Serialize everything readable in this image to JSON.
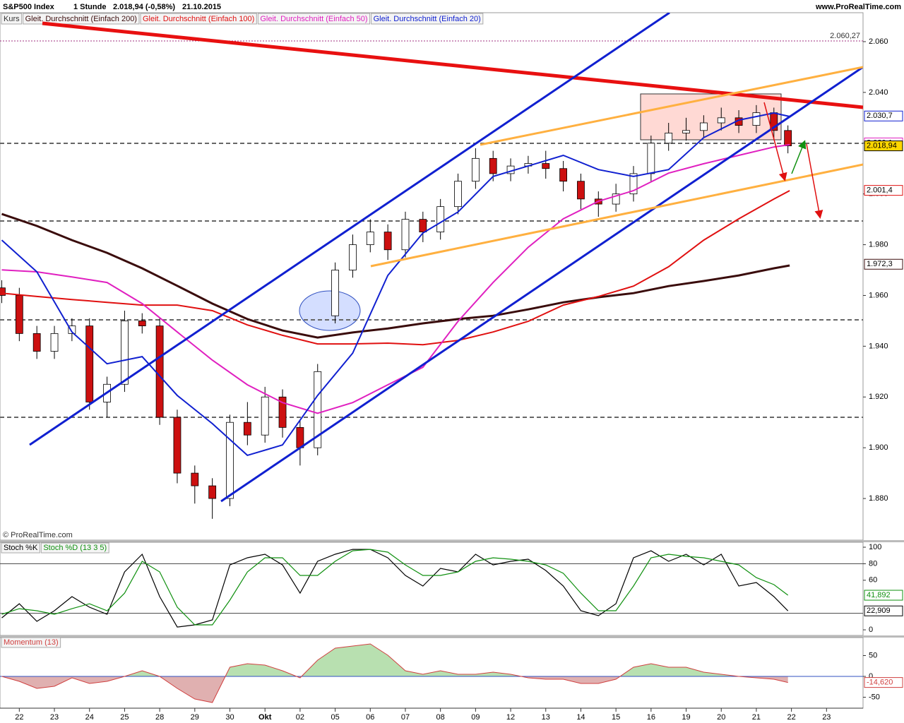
{
  "header": {
    "source": "www.ProRealTime.com"
  },
  "chart_data": [
    {
      "type": "candlestick",
      "title": "S&P500 Index",
      "timeframe": "1 Stunde",
      "quote": "2.018,94 (-0,58%)",
      "date": "21.10.2015",
      "copyright": "© ProRealTime.com",
      "name": "Kurs",
      "up_color": "#ffffff",
      "down_color": "#cc1010",
      "x": [
        -0.5,
        0,
        0.5,
        1,
        1.5,
        2,
        2.5,
        3,
        3.5,
        4,
        4.5,
        5,
        5.5,
        6,
        6.5,
        7,
        7.5,
        8,
        8.5,
        9,
        9.5,
        10,
        10.5,
        11,
        11.5,
        12,
        12.5,
        13,
        13.5,
        14,
        14.5,
        15,
        15.5,
        16,
        16.5,
        17,
        17.5,
        18,
        18.5,
        19,
        19.5,
        20,
        20.5,
        21,
        21.5,
        21.9
      ],
      "open": [
        1963,
        1960,
        1945,
        1938,
        1945,
        1948,
        1918,
        1925,
        1950,
        1948,
        1912,
        1890,
        1885,
        1880,
        1910,
        1905,
        1920,
        1908,
        1900,
        1952,
        1970,
        1980,
        1985,
        1978,
        1990,
        1985,
        1995,
        2005,
        2014,
        2008,
        2011,
        2012,
        2010,
        2005,
        1998,
        1996,
        2000,
        2008,
        2020,
        2024,
        2025,
        2028,
        2030,
        2027,
        2032,
        2025
      ],
      "high": [
        1966,
        1963,
        1948,
        1948,
        1951,
        1951,
        1928,
        1954,
        1953,
        1951,
        1915,
        1893,
        1888,
        1913,
        1918,
        1924,
        1923,
        1911,
        1933,
        1973,
        1984,
        1990,
        1988,
        1993,
        1993,
        1998,
        2008,
        2018,
        2017,
        2014,
        2015,
        2017,
        2013,
        2008,
        2001,
        2004,
        2011,
        2023,
        2028,
        2030,
        2031,
        2034,
        2033,
        2035,
        2034,
        2027
      ],
      "low": [
        1957,
        1942,
        1935,
        1935,
        1942,
        1915,
        1912,
        1922,
        1945,
        1909,
        1886,
        1878,
        1872,
        1877,
        1901,
        1902,
        1904,
        1893,
        1897,
        1949,
        1967,
        1977,
        1974,
        1975,
        1981,
        1982,
        1992,
        2002,
        2005,
        2005,
        2008,
        2006,
        2001,
        1994,
        1991,
        1993,
        1997,
        2005,
        2017,
        2021,
        2022,
        2025,
        2024,
        2024,
        2022,
        2016
      ],
      "close": [
        1960,
        1945,
        1938,
        1945,
        1948,
        1918,
        1925,
        1950,
        1948,
        1912,
        1890,
        1885,
        1880,
        1910,
        1905,
        1920,
        1908,
        1900,
        1930,
        1970,
        1980,
        1985,
        1978,
        1990,
        1985,
        1995,
        2005,
        2014,
        2008,
        2011,
        2012,
        2010,
        2005,
        1998,
        1996,
        2000,
        2008,
        2020,
        2024,
        2025,
        2028,
        2030,
        2027,
        2032,
        2025,
        2018.94
      ],
      "series": [
        {
          "name": "Gleit. Durchschnitt (Einfach 200)",
          "color": "#3a0c0c",
          "width": 3,
          "x": [
            -0.5,
            0.5,
            1.5,
            2.5,
            3.5,
            4.5,
            5.5,
            6.5,
            7.5,
            8.5,
            9.5,
            10.5,
            11.5,
            12.5,
            13.5,
            14.5,
            15.5,
            16.5,
            17.5,
            18.5,
            19.5,
            20.5,
            21.5,
            21.95
          ],
          "values": [
            1992.1,
            1987.4,
            1981.8,
            1976.8,
            1970.7,
            1963.8,
            1956.8,
            1950.7,
            1946.2,
            1943.4,
            1945.4,
            1947.0,
            1949.0,
            1950.7,
            1952.0,
            1954.5,
            1957.3,
            1959.3,
            1960.9,
            1963.7,
            1965.7,
            1967.9,
            1970.7,
            1971.8
          ]
        },
        {
          "name": "Gleit. Durchschnitt (Einfach 100)",
          "color": "#e01010",
          "width": 2,
          "x": [
            -0.5,
            0.5,
            1.5,
            2.5,
            3.5,
            4.5,
            5.5,
            6.5,
            7.5,
            8.5,
            9.5,
            10.5,
            11.5,
            12.5,
            13.5,
            14.5,
            15.5,
            16.5,
            17.5,
            18.5,
            19.5,
            20.5,
            21.5,
            21.95
          ],
          "values": [
            1960.9,
            1959.6,
            1958.4,
            1957.3,
            1956.2,
            1956.2,
            1954.0,
            1948.4,
            1944.3,
            1940.9,
            1940.9,
            1941.2,
            1940.6,
            1942.3,
            1945.6,
            1949.8,
            1956.2,
            1959.6,
            1963.7,
            1971.3,
            1981.8,
            1990.2,
            1998.0,
            2001.3
          ]
        },
        {
          "name": "Gleit. Durchschnitt (Einfach 50)",
          "color": "#e020c0",
          "width": 2,
          "x": [
            -0.5,
            0.5,
            1.5,
            2.5,
            3.5,
            4.5,
            5.5,
            6.5,
            7.5,
            8.5,
            9.5,
            10.5,
            11.5,
            12.5,
            13.5,
            14.5,
            15.5,
            16.5,
            17.5,
            18.5,
            19.5,
            20.5,
            21.5,
            21.95
          ],
          "values": [
            1970.1,
            1969.3,
            1967.3,
            1965.1,
            1956.8,
            1945.6,
            1934.5,
            1924.8,
            1917.8,
            1913.6,
            1917.8,
            1924.8,
            1931.7,
            1949.8,
            1965.1,
            1979.0,
            1990.2,
            1997.1,
            2001.3,
            2008.2,
            2011.9,
            2015.2,
            2018.5,
            2019.4
          ]
        },
        {
          "name": "Gleit. Durchschnitt (Einfach 20)",
          "color": "#1020d0",
          "width": 2,
          "x": [
            -0.5,
            0.5,
            1.5,
            2.5,
            3.5,
            4.5,
            5.5,
            6.5,
            7.5,
            8.5,
            9.5,
            10.5,
            11.5,
            12.5,
            13.5,
            14.5,
            15.5,
            16.5,
            17.5,
            18.5,
            19.5,
            20.5,
            21.5,
            21.95
          ],
          "values": [
            1981.8,
            1969.3,
            1945.6,
            1933.1,
            1935.9,
            1920.6,
            1909.5,
            1897.0,
            1901.1,
            1920.6,
            1937.3,
            1967.9,
            1984.6,
            1992.9,
            2006.9,
            2011.0,
            2015.2,
            2009.6,
            2006.9,
            2009.6,
            2022.2,
            2029.1,
            2031.9,
            2030.5
          ]
        }
      ],
      "xlim": [
        -0.55,
        24.04
      ],
      "xticks": [
        {
          "value": 0,
          "label": "22"
        },
        {
          "value": 1,
          "label": "23"
        },
        {
          "value": 2,
          "label": "24"
        },
        {
          "value": 3,
          "label": "25"
        },
        {
          "value": 4,
          "label": "28"
        },
        {
          "value": 5,
          "label": "29"
        },
        {
          "value": 6,
          "label": "30"
        },
        {
          "value": 7,
          "label": "Okt"
        },
        {
          "value": 8,
          "label": "02"
        },
        {
          "value": 9,
          "label": "05"
        },
        {
          "value": 10,
          "label": "06"
        },
        {
          "value": 11,
          "label": "07"
        },
        {
          "value": 12,
          "label": "08"
        },
        {
          "value": 13,
          "label": "09"
        },
        {
          "value": 14,
          "label": "12"
        },
        {
          "value": 15,
          "label": "13"
        },
        {
          "value": 16,
          "label": "14"
        },
        {
          "value": 17,
          "label": "15"
        },
        {
          "value": 18,
          "label": "16"
        },
        {
          "value": 19,
          "label": "19"
        },
        {
          "value": 20,
          "label": "20"
        },
        {
          "value": 21,
          "label": "21"
        },
        {
          "value": 22,
          "label": "22"
        },
        {
          "value": 23,
          "label": "23"
        }
      ],
      "ylim": [
        1863.6,
        2071.4
      ],
      "yticks": [
        {
          "value": 1880,
          "label": "1.880"
        },
        {
          "value": 1900,
          "label": "1.900"
        },
        {
          "value": 1920,
          "label": "1.920"
        },
        {
          "value": 1940,
          "label": "1.940"
        },
        {
          "value": 1960,
          "label": "1.960"
        },
        {
          "value": 1980,
          "label": "1.980"
        },
        {
          "value": 2000,
          "label": "2.000"
        },
        {
          "value": 2020,
          "label": "2.020"
        },
        {
          "value": 2040,
          "label": "2.040"
        },
        {
          "value": 2060,
          "label": "2.060"
        }
      ],
      "level": {
        "value": 2060.27,
        "label": "2.060,27",
        "color": "#a03080"
      },
      "last_values": [
        {
          "value": 2030.7,
          "label": "2.030,7",
          "color": "#1020d0",
          "fill": "#ffffff"
        },
        {
          "value": 2020.1,
          "label": "2.020,1",
          "color": "#e020c0",
          "fill": "#ffffff"
        },
        {
          "value": 2018.94,
          "label": "2.018,94",
          "color": "#000000",
          "fill": "#ffd700"
        },
        {
          "value": 2001.4,
          "label": "2.001,4",
          "color": "#e01010",
          "fill": "#ffffff"
        },
        {
          "value": 1972.3,
          "label": "1.972,3",
          "color": "#3a0c0c",
          "fill": "#ffffff"
        }
      ]
    },
    {
      "type": "line",
      "x": [
        -0.5,
        0,
        0.5,
        1,
        1.5,
        2,
        2.5,
        3,
        3.5,
        4,
        4.5,
        5,
        5.5,
        6,
        6.5,
        7,
        7.5,
        8,
        8.5,
        9,
        9.5,
        10,
        10.5,
        11,
        11.5,
        12,
        12.5,
        13,
        13.5,
        14,
        14.5,
        15,
        15.5,
        16,
        16.5,
        17,
        17.5,
        18,
        18.5,
        19,
        19.5,
        20,
        20.5,
        21,
        21.5,
        21.9
      ],
      "series": [
        {
          "name": "Stoch %K",
          "color": "#000000",
          "values": [
            14.5,
            31.6,
            10.3,
            23.1,
            40.2,
            27.4,
            18.8,
            70.1,
            91.5,
            40.2,
            3.4,
            6.0,
            12.0,
            78.6,
            87.2,
            91.5,
            78.6,
            44.4,
            82.9,
            91.5,
            97.4,
            97.4,
            87.2,
            65.8,
            53.0,
            74.4,
            70.1,
            91.5,
            78.6,
            82.9,
            85.5,
            71.8,
            53.0,
            23.1,
            17.1,
            31.6,
            87.2,
            95.7,
            82.9,
            91.5,
            78.6,
            91.5,
            53.0,
            57.3,
            40.2,
            22.909
          ]
        },
        {
          "name": "Stoch %D (13 3 5)",
          "color": "#109010",
          "values": [
            18.8,
            25.6,
            23.1,
            18.8,
            25.6,
            31.6,
            23.1,
            44.4,
            82.9,
            70.1,
            27.4,
            6.0,
            6.0,
            35.9,
            70.1,
            87.2,
            87.2,
            65.8,
            65.8,
            82.9,
            95.7,
            97.4,
            94.0,
            78.6,
            65.8,
            65.8,
            70.1,
            82.9,
            87.2,
            85.5,
            82.9,
            78.6,
            68.4,
            44.4,
            23.1,
            23.1,
            53.0,
            87.2,
            91.5,
            88.9,
            87.2,
            82.9,
            78.6,
            63.2,
            54.7,
            41.892
          ]
        }
      ],
      "ylim": [
        -6.8,
        106
      ],
      "yticks": [
        0,
        60,
        80,
        100
      ],
      "levels": [
        80,
        20
      ],
      "last_values": [
        {
          "value": 41.892,
          "label": "41,892",
          "color": "#109010"
        },
        {
          "value": 22.909,
          "label": "22,909",
          "color": "#000000"
        }
      ]
    },
    {
      "type": "area",
      "name": "Momentum (13)",
      "color": "#d04040",
      "pos_fill": "#b8e0b0",
      "neg_fill": "#e0b0b0",
      "x": [
        -0.5,
        0,
        0.5,
        1,
        1.5,
        2,
        2.5,
        3,
        3.5,
        4,
        4.5,
        5,
        5.5,
        6,
        6.5,
        7,
        7.5,
        8,
        8.5,
        9,
        9.5,
        10,
        10.5,
        11,
        11.5,
        12,
        12.5,
        13,
        13.5,
        14,
        14.5,
        15,
        15.5,
        16,
        16.5,
        17,
        17.5,
        18,
        18.5,
        19,
        19.5,
        20,
        20.5,
        21,
        21.5,
        21.9
      ],
      "values": [
        0,
        -11.9,
        -28.8,
        -23.7,
        -3.4,
        -16.9,
        -11.9,
        0,
        13.6,
        0,
        -28.8,
        -54.2,
        -62.7,
        22.0,
        30.5,
        27.1,
        13.6,
        -3.4,
        39.0,
        67.8,
        72.9,
        78.0,
        50.8,
        13.6,
        5.1,
        13.6,
        5.1,
        5.1,
        10.2,
        5.1,
        -3.4,
        -6.8,
        -6.8,
        -16.9,
        -16.9,
        -6.8,
        22.0,
        30.5,
        22.0,
        22.0,
        10.2,
        5.1,
        0,
        -3.4,
        -6.8,
        -14.62
      ],
      "ylim": [
        -76.3,
        93.2
      ],
      "yticks": [
        -50,
        0,
        50
      ],
      "last_values": [
        {
          "value": -14.62,
          "label": "-14,620",
          "color": "#d04040"
        }
      ]
    }
  ]
}
